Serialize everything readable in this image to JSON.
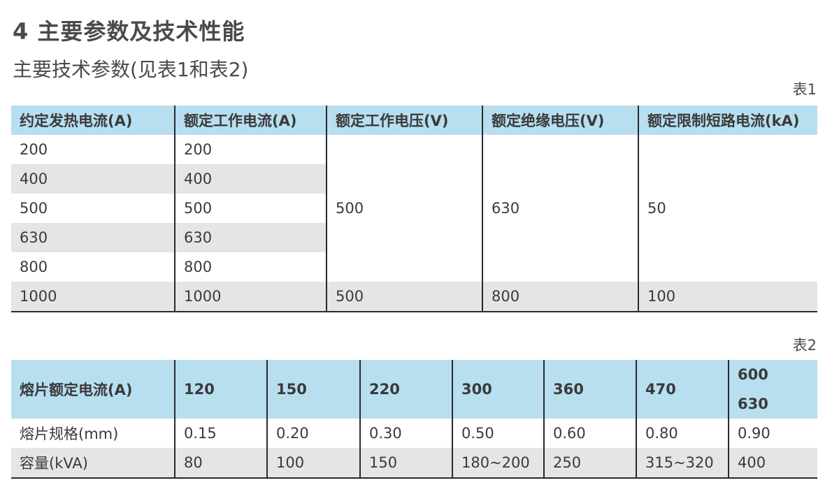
{
  "heading": "4 主要参数及技术性能",
  "subheading": "主要技术参数(见表1和表2)",
  "table1": {
    "caption": "表1",
    "headers": [
      "约定发热电流(A)",
      "额定工作电流(A)",
      "额定工作电压(V)",
      "额定绝缘电压(V)",
      "额定限制短路电流(kA)"
    ],
    "rows": [
      [
        "200",
        "200"
      ],
      [
        "400",
        "400"
      ],
      [
        "500",
        "500"
      ],
      [
        "630",
        "630"
      ],
      [
        "800",
        "800"
      ]
    ],
    "merged": [
      "500",
      "630",
      "50"
    ],
    "last_row": [
      "1000",
      "1000",
      "500",
      "800",
      "100"
    ]
  },
  "table2": {
    "caption": "表2",
    "header_label": "熔片额定电流(A)",
    "header_values": [
      "120",
      "150",
      "220",
      "300",
      "360",
      "470",
      "600",
      "630"
    ],
    "rows": [
      {
        "label": "熔片规格(mm)",
        "values": [
          "0.15",
          "0.20",
          "0.30",
          "0.50",
          "0.60",
          "0.80",
          "0.90"
        ]
      },
      {
        "label": "容量(kVA)",
        "values": [
          "80",
          "100",
          "150",
          "180~200",
          "250",
          "315~320",
          "400"
        ]
      }
    ]
  }
}
